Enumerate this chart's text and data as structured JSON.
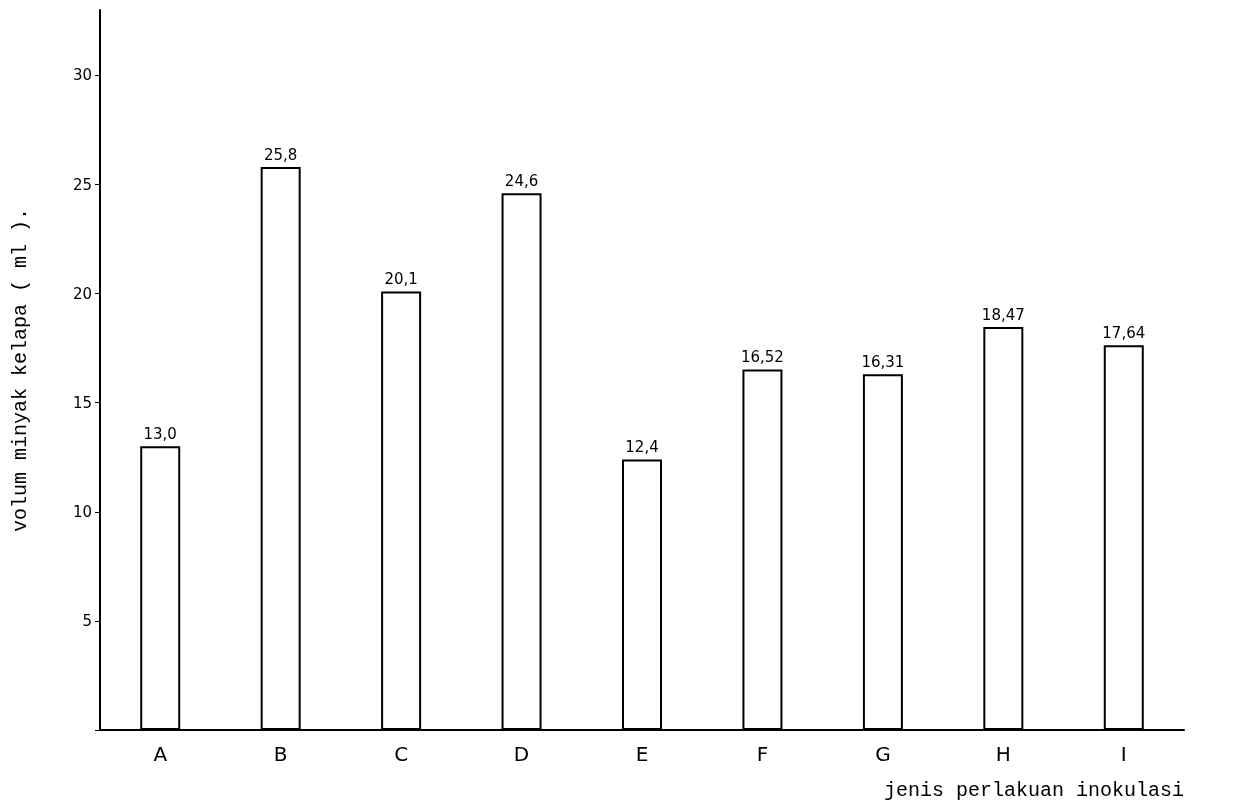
{
  "chart_data": {
    "type": "bar",
    "xlabel": "jenis perlakuan inokulasi",
    "ylabel": "volum minyak kelapa ( ml ).",
    "categories": [
      "A",
      "B",
      "C",
      "D",
      "E",
      "F",
      "G",
      "H",
      "I"
    ],
    "values": [
      13.0,
      25.8,
      20.1,
      24.6,
      12.4,
      16.52,
      16.31,
      18.47,
      17.64
    ],
    "value_labels": [
      "13,0",
      "25,8",
      "20,1",
      "24,6",
      "12,4",
      "16,52",
      "16,31",
      "18,47",
      "17,64"
    ],
    "color": "#ffffff",
    "ylim": [
      0,
      33
    ],
    "yticks": [
      {
        "value": 0,
        "label": null
      },
      5,
      10,
      15,
      20,
      25,
      30
    ],
    "grid": false
  }
}
